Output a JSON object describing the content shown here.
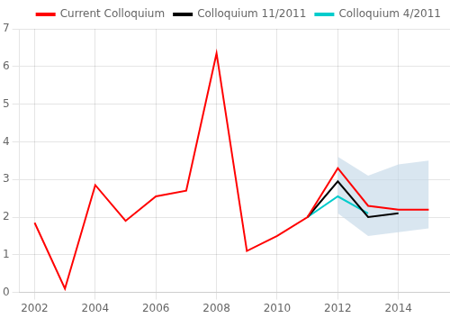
{
  "chart_data": {
    "type": "line",
    "series": [
      {
        "name": "Current Colloquium",
        "color": "#ff0000",
        "x": [
          2002,
          2003,
          2004,
          2005,
          2006,
          2007,
          2008,
          2009,
          2010,
          2011,
          2012,
          2013,
          2014,
          2015
        ],
        "values": [
          1.85,
          0.1,
          2.85,
          1.9,
          2.55,
          2.7,
          6.35,
          1.1,
          1.5,
          2.0,
          3.3,
          2.3,
          2.2,
          2.2
        ]
      },
      {
        "name": "Colloquium 11/2011",
        "color": "#000000",
        "x": [
          2011,
          2012,
          2013,
          2014
        ],
        "values": [
          2.0,
          2.95,
          2.0,
          2.1
        ]
      },
      {
        "name": "Colloquium 4/2011",
        "color": "#00cccc",
        "x": [
          2011,
          2012,
          2013
        ],
        "values": [
          2.0,
          2.55,
          2.1
        ]
      }
    ],
    "band": {
      "x": [
        2012,
        2013,
        2014,
        2015
      ],
      "lower": [
        2.1,
        1.5,
        1.6,
        1.7
      ],
      "upper": [
        3.6,
        3.1,
        3.4,
        3.5
      ],
      "color": "#c5d8e8"
    },
    "xlim": [
      2001.5,
      2015.7
    ],
    "xticks": [
      2002,
      2004,
      2006,
      2008,
      2010,
      2012,
      2014
    ],
    "ylim": [
      0,
      7
    ],
    "yticks": [
      0,
      1,
      2,
      3,
      4,
      5,
      6,
      7
    ],
    "grid": true,
    "legend": "upper right"
  }
}
